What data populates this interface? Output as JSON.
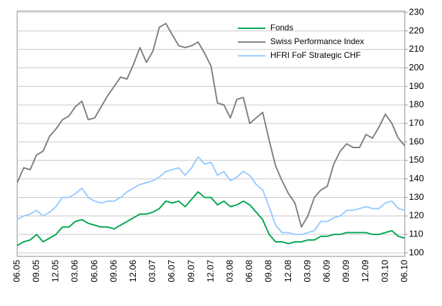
{
  "chart_data": {
    "type": "line",
    "categories": [
      "06.05",
      null,
      null,
      "09.05",
      null,
      null,
      "12.05",
      null,
      null,
      "03.06",
      null,
      null,
      "06.06",
      null,
      null,
      "09.06",
      null,
      null,
      "12.06",
      null,
      null,
      "03.07",
      null,
      null,
      "06.07",
      null,
      null,
      "09.07",
      null,
      null,
      "12.07",
      null,
      null,
      "03.08",
      null,
      null,
      "06.08",
      null,
      null,
      "09.08",
      null,
      null,
      "12.08",
      null,
      null,
      "03.09",
      null,
      null,
      "06.09",
      null,
      null,
      "09.09",
      null,
      null,
      "12.09",
      null,
      null,
      "03.10",
      null,
      null,
      "06.10"
    ],
    "series": [
      {
        "name": "Fonds",
        "color": "#00a650",
        "values": [
          104,
          106,
          107,
          110,
          106,
          108,
          110,
          114,
          114,
          117,
          118,
          116,
          115,
          114,
          114,
          113,
          115,
          117,
          119,
          121,
          121,
          122,
          124,
          128,
          127,
          128,
          125,
          129,
          133,
          130,
          130,
          126,
          128,
          125,
          126,
          128,
          126,
          122,
          118,
          110,
          106,
          106,
          105,
          106,
          106,
          107,
          107,
          109,
          109,
          110,
          110,
          111,
          111,
          111,
          111,
          110,
          110,
          111,
          112,
          109,
          108
        ]
      },
      {
        "name": "Swiss Performance Index",
        "color": "#7f7f7f",
        "values": [
          138,
          146,
          145,
          153,
          155,
          163,
          167,
          172,
          174,
          179,
          182,
          172,
          173,
          179,
          185,
          190,
          195,
          194,
          202,
          211,
          203,
          209,
          222,
          224,
          218,
          212,
          211,
          212,
          214,
          208,
          201,
          181,
          180,
          173,
          183,
          184,
          170,
          173,
          176,
          161,
          147,
          139,
          132,
          127,
          114,
          120,
          130,
          134,
          136,
          148,
          155,
          159,
          157,
          157,
          164,
          162,
          168,
          175,
          170,
          162,
          158
        ]
      },
      {
        "name": "HFRI FoF Strategic CHF",
        "color": "#99ccff",
        "values": [
          118,
          120,
          121,
          123,
          120,
          122,
          125,
          130,
          130,
          132,
          135,
          130,
          128,
          127,
          128,
          128,
          130,
          133,
          135,
          137,
          138,
          139,
          141,
          144,
          145,
          146,
          142,
          146,
          152,
          148,
          149,
          142,
          144,
          139,
          141,
          144,
          142,
          137,
          134,
          125,
          115,
          111,
          111,
          110,
          110,
          111,
          112,
          117,
          117,
          119,
          120,
          123,
          123,
          124,
          125,
          124,
          124,
          127,
          128,
          124,
          123
        ]
      }
    ],
    "ylim": [
      100,
      230
    ],
    "yticks": [
      100,
      110,
      120,
      130,
      140,
      150,
      160,
      170,
      180,
      190,
      200,
      210,
      220,
      230
    ],
    "grid": true,
    "legend": "top-right"
  }
}
